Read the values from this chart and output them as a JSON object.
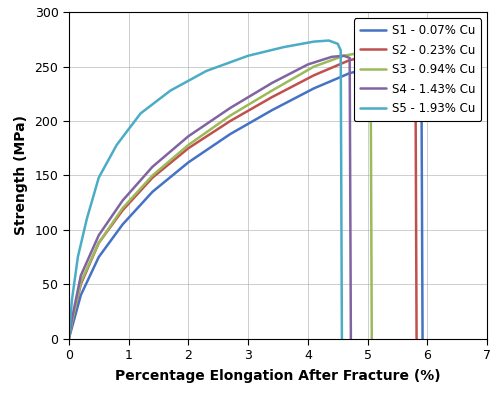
{
  "title": "",
  "xlabel": "Percentage Elongation After Fracture (%)",
  "ylabel": "Strength (MPa)",
  "xlim": [
    0,
    7
  ],
  "ylim": [
    0,
    300
  ],
  "xticks": [
    0,
    1,
    2,
    3,
    4,
    5,
    6,
    7
  ],
  "yticks": [
    0,
    50,
    100,
    150,
    200,
    250,
    300
  ],
  "series": [
    {
      "label": "S1 - 0.07% Cu",
      "color": "#4472C4",
      "x": [
        0,
        0.05,
        0.2,
        0.5,
        0.9,
        1.4,
        2.0,
        2.7,
        3.4,
        4.1,
        4.7,
        5.2,
        5.6,
        5.85,
        5.9,
        5.92
      ],
      "y": [
        0,
        10,
        40,
        75,
        105,
        135,
        162,
        188,
        210,
        230,
        244,
        251,
        253,
        253,
        252,
        0
      ]
    },
    {
      "label": "S2 - 0.23% Cu",
      "color": "#C0504D",
      "x": [
        0,
        0.05,
        0.2,
        0.5,
        0.9,
        1.4,
        2.0,
        2.7,
        3.4,
        4.1,
        4.7,
        5.2,
        5.55,
        5.75,
        5.8,
        5.82
      ],
      "y": [
        0,
        15,
        50,
        88,
        118,
        148,
        175,
        200,
        222,
        242,
        256,
        262,
        263,
        262,
        260,
        0
      ]
    },
    {
      "label": "S3 - 0.94% Cu",
      "color": "#9BBB59",
      "x": [
        0,
        0.05,
        0.2,
        0.5,
        0.9,
        1.4,
        2.0,
        2.7,
        3.4,
        4.1,
        4.6,
        4.9,
        5.0,
        5.05,
        5.07
      ],
      "y": [
        0,
        15,
        52,
        88,
        120,
        150,
        178,
        205,
        228,
        250,
        260,
        263,
        262,
        260,
        0
      ]
    },
    {
      "label": "S4 - 1.43% Cu",
      "color": "#8064A2",
      "x": [
        0,
        0.05,
        0.2,
        0.5,
        0.9,
        1.4,
        2.0,
        2.7,
        3.4,
        4.0,
        4.4,
        4.6,
        4.7,
        4.72
      ],
      "y": [
        0,
        18,
        58,
        95,
        127,
        158,
        186,
        212,
        235,
        252,
        259,
        260,
        258,
        0
      ]
    },
    {
      "label": "S5 - 1.93% Cu",
      "color": "#4BACC6",
      "x": [
        0,
        0.05,
        0.15,
        0.3,
        0.5,
        0.8,
        1.2,
        1.7,
        2.3,
        3.0,
        3.6,
        4.1,
        4.35,
        4.5,
        4.55,
        4.57
      ],
      "y": [
        0,
        35,
        75,
        110,
        148,
        178,
        207,
        228,
        246,
        260,
        268,
        273,
        274,
        271,
        265,
        0
      ]
    }
  ],
  "background_color": "#ffffff",
  "grid_color": "#aaaaaa",
  "line_width": 1.8,
  "legend_fontsize": 8.5,
  "tick_fontsize": 9,
  "xlabel_fontsize": 10,
  "ylabel_fontsize": 10
}
